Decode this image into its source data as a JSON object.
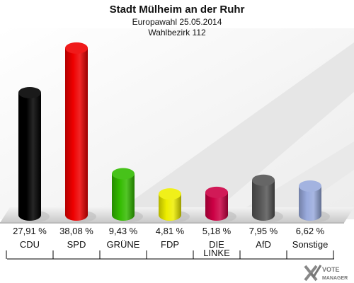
{
  "header": {
    "title": "Stadt Mülheim an der Ruhr",
    "subtitle": "Europawahl 25.05.2014",
    "district": "Wahlbezirk 112"
  },
  "logo": {
    "line1": "VOTE",
    "line2": "MANAGER"
  },
  "chart_data": {
    "type": "bar",
    "title": "Stadt Mülheim an der Ruhr",
    "subtitle": "Europawahl 25.05.2014 / Wahlbezirk 112",
    "categories": [
      "CDU",
      "SPD",
      "GRÜNE",
      "FDP",
      "DIE LINKE",
      "AfD",
      "Sonstige"
    ],
    "category_lines": [
      [
        "CDU"
      ],
      [
        "SPD"
      ],
      [
        "GRÜNE"
      ],
      [
        "FDP"
      ],
      [
        "DIE",
        "LINKE"
      ],
      [
        "AfD"
      ],
      [
        "Sonstige"
      ]
    ],
    "values": [
      27.91,
      38.08,
      9.43,
      4.81,
      5.18,
      7.95,
      6.62
    ],
    "value_labels": [
      "27,91 %",
      "38,08 %",
      "9,43 %",
      "4,81 %",
      "5,18 %",
      "7,95 %",
      "6,62 %"
    ],
    "colors": [
      "#000000",
      "#ee0000",
      "#33bb00",
      "#eeee00",
      "#cc0044",
      "#555555",
      "#99aadd"
    ],
    "ylim": [
      0,
      40
    ],
    "grid": false,
    "legend": "none"
  }
}
